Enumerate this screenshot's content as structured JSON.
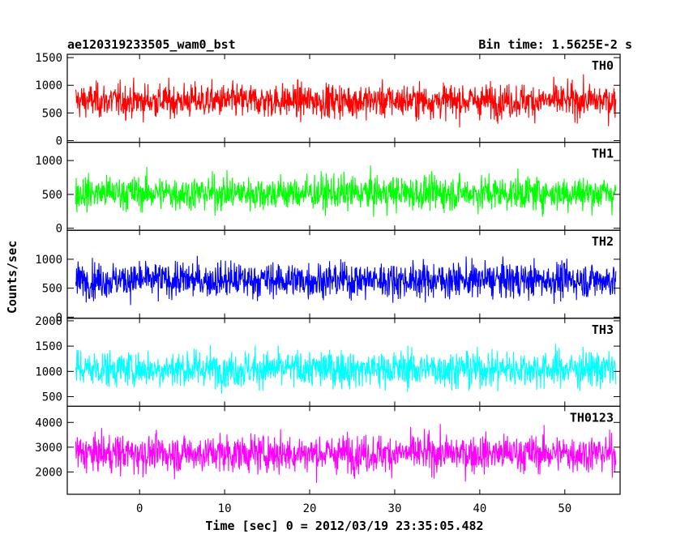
{
  "chart_data": {
    "type": "line",
    "title": "ae120319233505_wam0_bst",
    "bin_time": "Bin time: 1.5625E-2 s",
    "xlabel": "Time [sec] 0 = 2012/03/19 23:35:05.482",
    "ylabel": "Counts/sec",
    "xlim": [
      -8.5,
      56.5
    ],
    "x_ticks": [
      0,
      10,
      20,
      30,
      40,
      50
    ],
    "x_tick_labels": [
      "0",
      "10",
      "20",
      "30",
      "40",
      "50"
    ],
    "data_range_x": [
      -7.5,
      56
    ],
    "grid": false,
    "panels": [
      {
        "name": "TH0",
        "color": "#ff0000",
        "ylim": [
          -30,
          1560
        ],
        "ticks": [
          0,
          500,
          1000,
          1500
        ],
        "tick_labels": [
          "0",
          "500",
          "1000",
          "1500"
        ],
        "mean": 720,
        "min_typical": 100,
        "max_typical": 1500
      },
      {
        "name": "TH1",
        "color": "#00ff00",
        "ylim": [
          -30,
          1270
        ],
        "ticks": [
          0,
          500,
          1000
        ],
        "tick_labels": [
          "0",
          "500",
          "1000"
        ],
        "mean": 520,
        "min_typical": 80,
        "max_typical": 1250
      },
      {
        "name": "TH2",
        "color": "#0000ff",
        "ylim": [
          -20,
          1500
        ],
        "ticks": [
          0,
          500,
          1000
        ],
        "tick_labels": [
          "0",
          "500",
          "1000"
        ],
        "mean": 640,
        "min_typical": 50,
        "max_typical": 1450
      },
      {
        "name": "TH3",
        "color": "#00ffff",
        "ylim": [
          310,
          2050
        ],
        "ticks": [
          500,
          1000,
          1500,
          2000
        ],
        "tick_labels": [
          "500",
          "1000",
          "1500",
          "2000"
        ],
        "mean": 1050,
        "min_typical": 330,
        "max_typical": 2000
      },
      {
        "name": "TH0123",
        "color": "#ff00ff",
        "ylim": [
          1100,
          4650
        ],
        "ticks": [
          2000,
          3000,
          4000
        ],
        "tick_labels": [
          "2000",
          "3000",
          "4000"
        ],
        "mean": 2750,
        "min_typical": 1150,
        "max_typical": 4600
      }
    ]
  }
}
